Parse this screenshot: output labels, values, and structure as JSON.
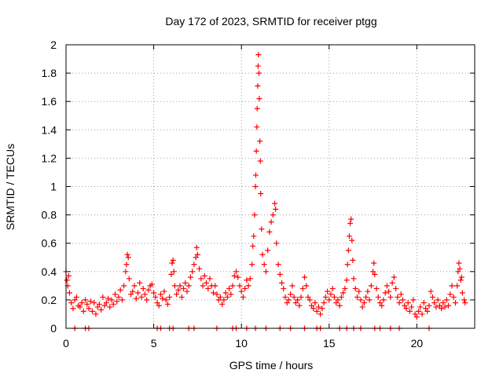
{
  "chart_data": {
    "type": "scatter",
    "title": "Day 172 of 2023, SRMTID for receiver ptgg",
    "xlabel": "GPS time / hours",
    "ylabel": "SRMTID / TECUs",
    "xlim": [
      0,
      23.3
    ],
    "ylim": [
      0,
      2
    ],
    "xticks": [
      0,
      5,
      10,
      15,
      20
    ],
    "xtick_labels": [
      "0",
      "5",
      "10",
      "15",
      "20"
    ],
    "yticks": [
      0,
      0.2,
      0.4,
      0.6,
      0.8,
      1,
      1.2,
      1.4,
      1.6,
      1.8,
      2
    ],
    "ytick_labels": [
      "0",
      "0.2",
      "0.4",
      "0.6",
      "0.8",
      "1",
      "1.2",
      "1.4",
      "1.6",
      "1.8",
      "2"
    ],
    "grid": true,
    "marker": "+",
    "marker_color": "#ff0000",
    "series": [
      {
        "name": "SRMTID",
        "points": [
          [
            0.0,
            0.4
          ],
          [
            0.05,
            0.34
          ],
          [
            0.1,
            0.3
          ],
          [
            0.15,
            0.37
          ],
          [
            0.2,
            0.25
          ],
          [
            0.3,
            0.18
          ],
          [
            0.4,
            0.14
          ],
          [
            0.5,
            0.2
          ],
          [
            0.6,
            0.22
          ],
          [
            0.7,
            0.16
          ],
          [
            0.8,
            0.15
          ],
          [
            0.9,
            0.18
          ],
          [
            1.0,
            0.12
          ],
          [
            1.1,
            0.2
          ],
          [
            1.2,
            0.17
          ],
          [
            1.3,
            0.14
          ],
          [
            1.4,
            0.19
          ],
          [
            1.5,
            0.12
          ],
          [
            1.6,
            0.18
          ],
          [
            1.7,
            0.1
          ],
          [
            1.8,
            0.15
          ],
          [
            1.9,
            0.17
          ],
          [
            2.0,
            0.13
          ],
          [
            2.1,
            0.22
          ],
          [
            2.2,
            0.16
          ],
          [
            2.3,
            0.18
          ],
          [
            2.4,
            0.21
          ],
          [
            2.5,
            0.15
          ],
          [
            2.6,
            0.2
          ],
          [
            2.7,
            0.17
          ],
          [
            2.8,
            0.24
          ],
          [
            2.9,
            0.19
          ],
          [
            3.0,
            0.22
          ],
          [
            3.1,
            0.27
          ],
          [
            3.2,
            0.2
          ],
          [
            3.3,
            0.3
          ],
          [
            3.4,
            0.4
          ],
          [
            3.45,
            0.45
          ],
          [
            3.5,
            0.52
          ],
          [
            3.55,
            0.5
          ],
          [
            3.6,
            0.35
          ],
          [
            3.7,
            0.24
          ],
          [
            3.8,
            0.26
          ],
          [
            3.9,
            0.3
          ],
          [
            4.0,
            0.21
          ],
          [
            4.1,
            0.25
          ],
          [
            4.2,
            0.32
          ],
          [
            4.3,
            0.22
          ],
          [
            4.4,
            0.28
          ],
          [
            4.5,
            0.24
          ],
          [
            4.6,
            0.2
          ],
          [
            4.7,
            0.27
          ],
          [
            4.8,
            0.3
          ],
          [
            4.9,
            0.31
          ],
          [
            5.0,
            0.25
          ],
          [
            5.1,
            0.22
          ],
          [
            5.2,
            0.18
          ],
          [
            5.3,
            0.16
          ],
          [
            5.4,
            0.24
          ],
          [
            5.5,
            0.21
          ],
          [
            5.6,
            0.26
          ],
          [
            5.7,
            0.2
          ],
          [
            5.8,
            0.17
          ],
          [
            5.9,
            0.22
          ],
          [
            6.0,
            0.38
          ],
          [
            6.05,
            0.46
          ],
          [
            6.1,
            0.48
          ],
          [
            6.15,
            0.4
          ],
          [
            6.2,
            0.3
          ],
          [
            6.3,
            0.24
          ],
          [
            6.4,
            0.27
          ],
          [
            6.5,
            0.3
          ],
          [
            6.6,
            0.22
          ],
          [
            6.7,
            0.28
          ],
          [
            6.8,
            0.32
          ],
          [
            6.9,
            0.26
          ],
          [
            7.0,
            0.3
          ],
          [
            7.1,
            0.36
          ],
          [
            7.2,
            0.4
          ],
          [
            7.3,
            0.45
          ],
          [
            7.4,
            0.5
          ],
          [
            7.45,
            0.57
          ],
          [
            7.5,
            0.52
          ],
          [
            7.6,
            0.42
          ],
          [
            7.7,
            0.35
          ],
          [
            7.8,
            0.3
          ],
          [
            7.9,
            0.37
          ],
          [
            8.0,
            0.32
          ],
          [
            8.1,
            0.28
          ],
          [
            8.2,
            0.35
          ],
          [
            8.3,
            0.3
          ],
          [
            8.4,
            0.25
          ],
          [
            8.5,
            0.3
          ],
          [
            8.6,
            0.24
          ],
          [
            8.7,
            0.2
          ],
          [
            8.8,
            0.22
          ],
          [
            8.9,
            0.17
          ],
          [
            9.0,
            0.2
          ],
          [
            9.1,
            0.25
          ],
          [
            9.2,
            0.22
          ],
          [
            9.3,
            0.28
          ],
          [
            9.4,
            0.24
          ],
          [
            9.5,
            0.3
          ],
          [
            9.6,
            0.37
          ],
          [
            9.7,
            0.4
          ],
          [
            9.8,
            0.36
          ],
          [
            9.9,
            0.3
          ],
          [
            10.0,
            0.26
          ],
          [
            10.1,
            0.22
          ],
          [
            10.2,
            0.28
          ],
          [
            10.3,
            0.34
          ],
          [
            10.4,
            0.3
          ],
          [
            10.5,
            0.35
          ],
          [
            10.6,
            0.45
          ],
          [
            10.65,
            0.58
          ],
          [
            10.7,
            0.65
          ],
          [
            10.75,
            0.8
          ],
          [
            10.8,
            1.0
          ],
          [
            10.82,
            1.08
          ],
          [
            10.85,
            1.25
          ],
          [
            10.88,
            1.42
          ],
          [
            10.9,
            1.55
          ],
          [
            10.93,
            1.71
          ],
          [
            10.95,
            1.85
          ],
          [
            10.97,
            1.93
          ],
          [
            11.0,
            1.8
          ],
          [
            11.02,
            1.62
          ],
          [
            11.05,
            1.32
          ],
          [
            11.08,
            1.18
          ],
          [
            11.1,
            0.95
          ],
          [
            11.15,
            0.7
          ],
          [
            11.2,
            0.52
          ],
          [
            11.3,
            0.45
          ],
          [
            11.4,
            0.4
          ],
          [
            11.5,
            0.55
          ],
          [
            11.6,
            0.68
          ],
          [
            11.7,
            0.75
          ],
          [
            11.8,
            0.8
          ],
          [
            11.9,
            0.88
          ],
          [
            11.95,
            0.84
          ],
          [
            12.0,
            0.6
          ],
          [
            12.1,
            0.45
          ],
          [
            12.2,
            0.38
          ],
          [
            12.3,
            0.32
          ],
          [
            12.4,
            0.28
          ],
          [
            12.5,
            0.22
          ],
          [
            12.6,
            0.18
          ],
          [
            12.7,
            0.2
          ],
          [
            12.8,
            0.24
          ],
          [
            12.9,
            0.3
          ],
          [
            13.0,
            0.22
          ],
          [
            13.1,
            0.18
          ],
          [
            13.2,
            0.2
          ],
          [
            13.3,
            0.16
          ],
          [
            13.4,
            0.22
          ],
          [
            13.5,
            0.28
          ],
          [
            13.6,
            0.36
          ],
          [
            13.7,
            0.3
          ],
          [
            13.8,
            0.22
          ],
          [
            13.9,
            0.2
          ],
          [
            14.0,
            0.16
          ],
          [
            14.1,
            0.14
          ],
          [
            14.2,
            0.18
          ],
          [
            14.3,
            0.12
          ],
          [
            14.4,
            0.15
          ],
          [
            14.5,
            0.1
          ],
          [
            14.6,
            0.14
          ],
          [
            14.7,
            0.18
          ],
          [
            14.8,
            0.22
          ],
          [
            14.9,
            0.26
          ],
          [
            15.0,
            0.2
          ],
          [
            15.1,
            0.24
          ],
          [
            15.2,
            0.28
          ],
          [
            15.3,
            0.22
          ],
          [
            15.4,
            0.18
          ],
          [
            15.5,
            0.2
          ],
          [
            15.6,
            0.16
          ],
          [
            15.7,
            0.22
          ],
          [
            15.8,
            0.25
          ],
          [
            15.9,
            0.28
          ],
          [
            16.0,
            0.34
          ],
          [
            16.05,
            0.45
          ],
          [
            16.1,
            0.55
          ],
          [
            16.15,
            0.65
          ],
          [
            16.2,
            0.74
          ],
          [
            16.25,
            0.77
          ],
          [
            16.3,
            0.62
          ],
          [
            16.35,
            0.48
          ],
          [
            16.4,
            0.35
          ],
          [
            16.5,
            0.28
          ],
          [
            16.6,
            0.22
          ],
          [
            16.7,
            0.26
          ],
          [
            16.8,
            0.2
          ],
          [
            16.9,
            0.15
          ],
          [
            17.0,
            0.18
          ],
          [
            17.1,
            0.22
          ],
          [
            17.2,
            0.26
          ],
          [
            17.3,
            0.2
          ],
          [
            17.4,
            0.3
          ],
          [
            17.5,
            0.4
          ],
          [
            17.55,
            0.46
          ],
          [
            17.6,
            0.38
          ],
          [
            17.7,
            0.28
          ],
          [
            17.8,
            0.22
          ],
          [
            17.9,
            0.18
          ],
          [
            18.0,
            0.16
          ],
          [
            18.1,
            0.2
          ],
          [
            18.2,
            0.25
          ],
          [
            18.3,
            0.3
          ],
          [
            18.4,
            0.26
          ],
          [
            18.5,
            0.22
          ],
          [
            18.6,
            0.32
          ],
          [
            18.7,
            0.36
          ],
          [
            18.8,
            0.28
          ],
          [
            18.9,
            0.22
          ],
          [
            19.0,
            0.18
          ],
          [
            19.1,
            0.24
          ],
          [
            19.2,
            0.2
          ],
          [
            19.3,
            0.16
          ],
          [
            19.4,
            0.14
          ],
          [
            19.5,
            0.18
          ],
          [
            19.6,
            0.12
          ],
          [
            19.7,
            0.15
          ],
          [
            19.8,
            0.2
          ],
          [
            19.9,
            0.1
          ],
          [
            20.0,
            0.08
          ],
          [
            20.1,
            0.12
          ],
          [
            20.2,
            0.15
          ],
          [
            20.3,
            0.1
          ],
          [
            20.4,
            0.18
          ],
          [
            20.5,
            0.14
          ],
          [
            20.6,
            0.12
          ],
          [
            20.7,
            0.16
          ],
          [
            20.8,
            0.26
          ],
          [
            20.9,
            0.22
          ],
          [
            21.0,
            0.18
          ],
          [
            21.1,
            0.15
          ],
          [
            21.2,
            0.2
          ],
          [
            21.3,
            0.16
          ],
          [
            21.4,
            0.14
          ],
          [
            21.5,
            0.18
          ],
          [
            21.6,
            0.15
          ],
          [
            21.7,
            0.2
          ],
          [
            21.8,
            0.16
          ],
          [
            21.9,
            0.24
          ],
          [
            22.0,
            0.3
          ],
          [
            22.1,
            0.22
          ],
          [
            22.2,
            0.18
          ],
          [
            22.3,
            0.3
          ],
          [
            22.35,
            0.4
          ],
          [
            22.4,
            0.46
          ],
          [
            22.45,
            0.42
          ],
          [
            22.5,
            0.34
          ],
          [
            22.55,
            0.36
          ],
          [
            22.6,
            0.25
          ],
          [
            22.7,
            0.2
          ],
          [
            22.75,
            0.18
          ],
          [
            0.5,
            0.0
          ],
          [
            1.1,
            0.0
          ],
          [
            1.3,
            0.0
          ],
          [
            5.2,
            0.0
          ],
          [
            5.4,
            0.0
          ],
          [
            5.9,
            0.0
          ],
          [
            6.1,
            0.0
          ],
          [
            7.0,
            0.0
          ],
          [
            7.3,
            0.0
          ],
          [
            8.6,
            0.0
          ],
          [
            9.5,
            0.0
          ],
          [
            9.7,
            0.0
          ],
          [
            10.3,
            0.0
          ],
          [
            10.8,
            0.0
          ],
          [
            11.4,
            0.0
          ],
          [
            12.2,
            0.0
          ],
          [
            12.8,
            0.0
          ],
          [
            13.6,
            0.0
          ],
          [
            14.3,
            0.0
          ],
          [
            14.5,
            0.0
          ],
          [
            15.6,
            0.0
          ],
          [
            16.0,
            0.0
          ],
          [
            16.4,
            0.0
          ],
          [
            16.8,
            0.0
          ],
          [
            17.6,
            0.0
          ],
          [
            17.9,
            0.0
          ],
          [
            18.5,
            0.0
          ],
          [
            19.0,
            0.0
          ],
          [
            20.7,
            0.0
          ]
        ]
      }
    ]
  }
}
